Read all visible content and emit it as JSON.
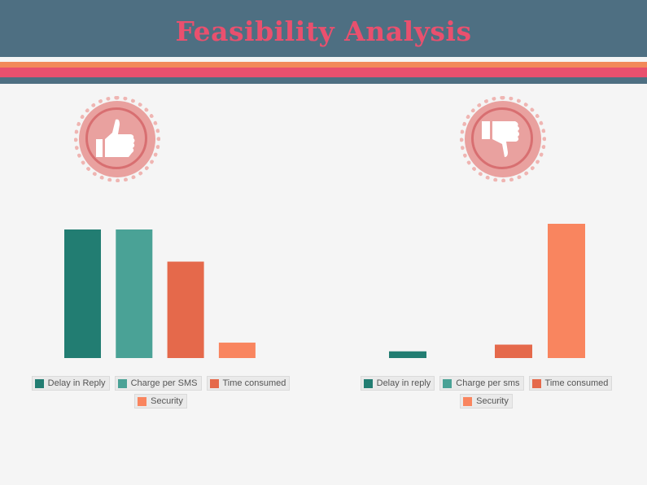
{
  "title": "Feasibility Analysis",
  "colors": {
    "header_bg": "#4e6f82",
    "title_text": "#e9506e",
    "stripe_orange": "#f2895a",
    "stripe_pink": "#e9506e",
    "stripe_slate": "#4e6f82",
    "badge": "#e9a19f"
  },
  "icons": {
    "left_badge": "thumbs-up-icon",
    "right_badge": "thumbs-down-icon"
  },
  "chart_data": [
    {
      "type": "bar",
      "categories": [
        "Delay in Reply",
        "Charge per SMS",
        "Time consumed",
        "Security"
      ],
      "values": [
        100,
        100,
        75,
        12
      ],
      "ylim": [
        0,
        100
      ],
      "colors": [
        "#227d72",
        "#4aa296",
        "#e5694b",
        "#f9855f"
      ],
      "legend": [
        "Delay in Reply",
        "Charge per SMS",
        "Time consumed",
        "Security"
      ],
      "legend_position": "bottom",
      "grid": false
    },
    {
      "type": "bar",
      "categories": [
        "Delay in reply",
        "Charge per sms",
        "Time consumed",
        "Security"
      ],
      "values": [
        5,
        0,
        10,
        100
      ],
      "ylim": [
        0,
        100
      ],
      "colors": [
        "#227d72",
        "#4aa296",
        "#e5694b",
        "#f9855f"
      ],
      "legend": [
        "Delay in reply",
        "Charge per sms",
        "Time consumed",
        "Security"
      ],
      "legend_position": "bottom",
      "grid": false
    }
  ]
}
